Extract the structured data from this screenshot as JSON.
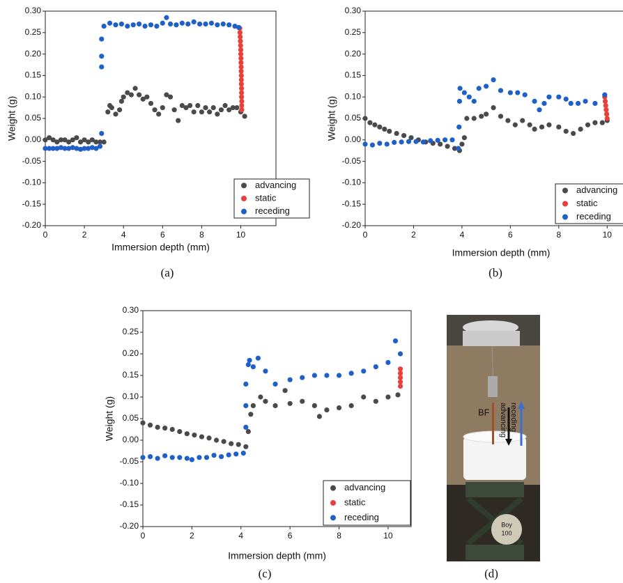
{
  "chart_data": [
    {
      "type": "scatter",
      "caption": "(a)",
      "xlabel": "Immersion depth (mm)",
      "ylabel": "Weight (g)",
      "xlim": [
        0,
        11.8
      ],
      "ylim": [
        -0.2,
        0.3
      ],
      "xticks": [
        0,
        2,
        4,
        6,
        8,
        10
      ],
      "yticks": [
        {
          "value": -0.2,
          "label": "-0.20"
        },
        {
          "value": -0.15,
          "label": "-0.15"
        },
        {
          "value": -0.1,
          "label": "-0.10"
        },
        {
          "value": -0.05,
          "label": "-0.05"
        },
        {
          "value": 0,
          "label": "0.00"
        },
        0.05,
        {
          "value": 0.1,
          "label": "0.10"
        },
        0.15,
        {
          "value": 0.2,
          "label": "0.20"
        },
        0.25,
        {
          "value": 0.3,
          "label": "0.30"
        }
      ],
      "grid": false,
      "series": [
        {
          "name": "advancing",
          "color": "#4a4a4a",
          "x": [
            0,
            0.2,
            0.4,
            0.6,
            0.8,
            1.0,
            1.2,
            1.4,
            1.6,
            1.8,
            2.0,
            2.2,
            2.4,
            2.6,
            2.8,
            3.0,
            3.2,
            3.3,
            3.4,
            3.6,
            3.8,
            3.9,
            4.0,
            4.2,
            4.4,
            4.6,
            4.8,
            5.0,
            5.2,
            5.4,
            5.6,
            5.8,
            6.0,
            6.2,
            6.4,
            6.6,
            6.8,
            7.0,
            7.2,
            7.4,
            7.6,
            7.8,
            8.0,
            8.2,
            8.4,
            8.6,
            8.8,
            9.0,
            9.2,
            9.4,
            9.6,
            9.8,
            10.0,
            10.2
          ],
          "values": [
            0.0,
            0.005,
            0.0,
            -0.005,
            0.0,
            0.0,
            -0.005,
            0.0,
            0.005,
            -0.005,
            0.0,
            -0.005,
            0.0,
            -0.005,
            -0.005,
            -0.005,
            0.065,
            0.08,
            0.075,
            0.06,
            0.07,
            0.09,
            0.1,
            0.11,
            0.105,
            0.12,
            0.105,
            0.095,
            0.1,
            0.085,
            0.07,
            0.06,
            0.075,
            0.105,
            0.1,
            0.07,
            0.045,
            0.08,
            0.075,
            0.08,
            0.065,
            0.08,
            0.065,
            0.075,
            0.065,
            0.075,
            0.06,
            0.07,
            0.08,
            0.07,
            0.075,
            0.075,
            0.065,
            0.055
          ]
        },
        {
          "name": "static",
          "color": "#e8403a",
          "x": [
            9.95,
            9.96,
            9.97,
            9.98,
            9.99,
            10.0,
            10.0,
            10.01,
            10.01,
            10.02,
            10.02,
            10.03,
            10.03,
            10.03,
            10.04,
            10.04,
            10.04,
            10.05,
            10.05,
            10.05
          ],
          "values": [
            0.26,
            0.25,
            0.24,
            0.23,
            0.22,
            0.21,
            0.2,
            0.19,
            0.18,
            0.17,
            0.16,
            0.15,
            0.14,
            0.13,
            0.12,
            0.11,
            0.1,
            0.09,
            0.08,
            0.07
          ]
        },
        {
          "name": "receding",
          "color": "#1f5fc8",
          "x": [
            0,
            0.2,
            0.4,
            0.6,
            0.8,
            1.0,
            1.2,
            1.4,
            1.6,
            1.8,
            2.0,
            2.2,
            2.4,
            2.6,
            2.8,
            2.88,
            2.88,
            2.88,
            2.88,
            3.0,
            3.3,
            3.6,
            3.9,
            4.2,
            4.5,
            4.8,
            5.1,
            5.4,
            5.7,
            6.0,
            6.2,
            6.4,
            6.7,
            7.0,
            7.3,
            7.6,
            7.9,
            8.2,
            8.5,
            8.8,
            9.1,
            9.4,
            9.7,
            9.9
          ],
          "values": [
            -0.02,
            -0.02,
            -0.02,
            -0.02,
            -0.018,
            -0.02,
            -0.02,
            -0.018,
            -0.02,
            -0.022,
            -0.02,
            -0.02,
            -0.018,
            -0.02,
            -0.015,
            0.015,
            0.17,
            0.195,
            0.235,
            0.265,
            0.272,
            0.268,
            0.27,
            0.265,
            0.268,
            0.27,
            0.265,
            0.268,
            0.265,
            0.272,
            0.285,
            0.27,
            0.268,
            0.272,
            0.27,
            0.275,
            0.27,
            0.27,
            0.272,
            0.268,
            0.27,
            0.268,
            0.265,
            0.262
          ]
        }
      ],
      "legend": "lower right"
    },
    {
      "type": "scatter",
      "caption": "(b)",
      "xlabel": "Immersion depth (mm)",
      "ylabel": "Weight (g)",
      "xlim": [
        0,
        11
      ],
      "ylim": [
        -0.2,
        0.3
      ],
      "xticks": [
        0,
        2,
        4,
        6,
        8,
        10
      ],
      "yticks": [
        {
          "value": -0.2,
          "label": "-0.20"
        },
        {
          "value": -0.15,
          "label": "-0.15"
        },
        {
          "value": -0.1,
          "label": "-0.10"
        },
        {
          "value": -0.05,
          "label": "-0.05"
        },
        {
          "value": 0,
          "label": "0.00"
        },
        0.05,
        {
          "value": 0.1,
          "label": "0.10"
        },
        0.15,
        {
          "value": 0.2,
          "label": "0.20"
        },
        0.25,
        {
          "value": 0.3,
          "label": "0.30"
        }
      ],
      "grid": false,
      "series": [
        {
          "name": "advancing",
          "color": "#4a4a4a",
          "x": [
            0,
            0.2,
            0.4,
            0.6,
            0.8,
            1.0,
            1.3,
            1.6,
            1.9,
            2.2,
            2.5,
            2.8,
            3.1,
            3.4,
            3.7,
            3.9,
            4.0,
            4.1,
            4.2,
            4.5,
            4.8,
            5.0,
            5.3,
            5.6,
            5.9,
            6.2,
            6.5,
            6.8,
            7.0,
            7.3,
            7.6,
            8.0,
            8.3,
            8.6,
            8.9,
            9.2,
            9.5,
            9.8,
            10.0
          ],
          "values": [
            0.05,
            0.04,
            0.035,
            0.03,
            0.025,
            0.02,
            0.015,
            0.01,
            0.005,
            0.0,
            -0.005,
            -0.008,
            -0.01,
            -0.015,
            -0.02,
            -0.025,
            -0.01,
            0.005,
            0.05,
            0.05,
            0.055,
            0.06,
            0.075,
            0.055,
            0.045,
            0.035,
            0.045,
            0.035,
            0.025,
            0.03,
            0.035,
            0.03,
            0.02,
            0.015,
            0.025,
            0.035,
            0.04,
            0.04,
            0.045
          ]
        },
        {
          "name": "static",
          "color": "#e8403a",
          "x": [
            9.9,
            9.92,
            9.94,
            9.96,
            9.98,
            10.0
          ],
          "values": [
            0.1,
            0.09,
            0.08,
            0.07,
            0.06,
            0.05
          ]
        },
        {
          "name": "receding",
          "color": "#1f5fc8",
          "x": [
            0,
            0.3,
            0.6,
            0.9,
            1.2,
            1.5,
            1.8,
            2.1,
            2.4,
            2.7,
            3.0,
            3.3,
            3.6,
            3.85,
            3.88,
            3.9,
            3.92,
            4.1,
            4.3,
            4.5,
            4.7,
            5.0,
            5.3,
            5.6,
            6.0,
            6.3,
            6.6,
            7.0,
            7.2,
            7.4,
            7.6,
            8.0,
            8.3,
            8.5,
            8.8,
            9.1,
            9.5,
            9.9
          ],
          "values": [
            -0.01,
            -0.012,
            -0.008,
            -0.01,
            -0.006,
            -0.005,
            -0.004,
            -0.004,
            -0.005,
            -0.002,
            -0.001,
            0.0,
            0.0,
            -0.02,
            0.03,
            0.09,
            0.12,
            0.11,
            0.1,
            0.09,
            0.12,
            0.125,
            0.14,
            0.115,
            0.11,
            0.11,
            0.105,
            0.09,
            0.07,
            0.085,
            0.1,
            0.1,
            0.095,
            0.085,
            0.085,
            0.09,
            0.085,
            0.105
          ]
        }
      ],
      "legend": "lower right"
    },
    {
      "type": "scatter",
      "caption": "(c)",
      "xlabel": "Immersion depth (mm)",
      "ylabel": "Weight (g)",
      "xlim": [
        0,
        10.94
      ],
      "ylim": [
        -0.2,
        0.3
      ],
      "xticks": [
        0,
        2,
        4,
        6,
        8,
        10
      ],
      "yticks": [
        {
          "value": -0.2,
          "label": "-0.20"
        },
        {
          "value": -0.15,
          "label": "-0.15"
        },
        {
          "value": -0.1,
          "label": "-0.10"
        },
        {
          "value": -0.05,
          "label": "-0.05"
        },
        {
          "value": 0,
          "label": "0.00"
        },
        0.05,
        {
          "value": 0.1,
          "label": "0.10"
        },
        0.15,
        {
          "value": 0.2,
          "label": "0.20"
        },
        0.25,
        {
          "value": 0.3,
          "label": "0.30"
        }
      ],
      "grid": false,
      "series": [
        {
          "name": "advancing",
          "color": "#4a4a4a",
          "x": [
            0,
            0.3,
            0.6,
            0.9,
            1.2,
            1.5,
            1.8,
            2.1,
            2.4,
            2.7,
            3.0,
            3.3,
            3.6,
            3.9,
            4.2,
            4.3,
            4.4,
            4.5,
            4.8,
            5.0,
            5.4,
            5.8,
            6.0,
            6.5,
            7.0,
            7.2,
            7.5,
            8.0,
            8.5,
            9.0,
            9.5,
            10.0,
            10.4
          ],
          "values": [
            0.04,
            0.035,
            0.03,
            0.028,
            0.025,
            0.02,
            0.015,
            0.012,
            0.008,
            0.005,
            0.0,
            -0.003,
            -0.008,
            -0.01,
            -0.015,
            0.02,
            0.06,
            0.08,
            0.1,
            0.09,
            0.08,
            0.115,
            0.085,
            0.09,
            0.08,
            0.055,
            0.07,
            0.075,
            0.08,
            0.1,
            0.09,
            0.1,
            0.105
          ]
        },
        {
          "name": "static",
          "color": "#e8403a",
          "x": [
            10.5,
            10.5,
            10.5,
            10.5,
            10.5
          ],
          "values": [
            0.165,
            0.155,
            0.145,
            0.135,
            0.125
          ]
        },
        {
          "name": "receding",
          "color": "#1f5fc8",
          "x": [
            0,
            0.3,
            0.6,
            0.9,
            1.2,
            1.5,
            1.8,
            2.0,
            2.3,
            2.6,
            2.9,
            3.2,
            3.5,
            3.8,
            4.1,
            4.2,
            4.2,
            4.2,
            4.3,
            4.35,
            4.5,
            4.7,
            5.0,
            5.4,
            6.0,
            6.5,
            7.0,
            7.5,
            8.0,
            8.5,
            9.0,
            9.5,
            10.0,
            10.3,
            10.5
          ],
          "values": [
            -0.04,
            -0.038,
            -0.042,
            -0.036,
            -0.04,
            -0.04,
            -0.042,
            -0.045,
            -0.04,
            -0.04,
            -0.035,
            -0.038,
            -0.034,
            -0.032,
            -0.03,
            0.03,
            0.08,
            0.13,
            0.175,
            0.185,
            0.17,
            0.19,
            0.16,
            0.13,
            0.14,
            0.145,
            0.15,
            0.15,
            0.15,
            0.155,
            0.16,
            0.17,
            0.18,
            0.23,
            0.2
          ]
        }
      ],
      "legend": "lower right"
    }
  ],
  "photo": {
    "caption": "(d)",
    "labels": [
      "BF",
      "advancing",
      "receding",
      "Boy",
      "100"
    ]
  }
}
